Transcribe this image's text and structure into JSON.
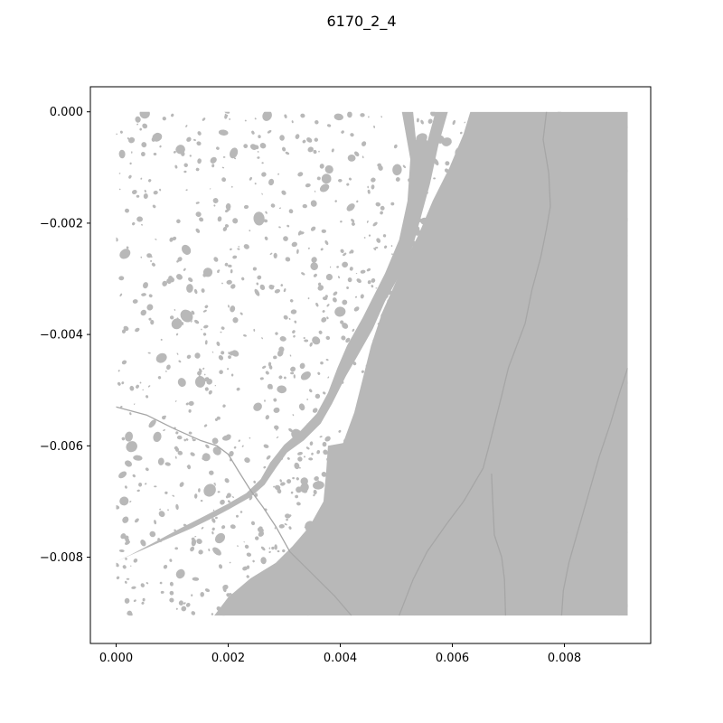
{
  "title": "6170_2_4",
  "colors": {
    "water": "#b8b8b8",
    "stream": "#a6a6a6",
    "background": "#ffffff",
    "frame": "#000000"
  },
  "chart_data": {
    "type": "map",
    "xlim": [
      -0.00046,
      0.00954
    ],
    "ylim": [
      -0.00955,
      0.00045
    ],
    "xticks": [
      {
        "value": 0.0,
        "label": "0.000"
      },
      {
        "value": 0.002,
        "label": "0.002"
      },
      {
        "value": 0.004,
        "label": "0.004"
      },
      {
        "value": 0.006,
        "label": "0.006"
      },
      {
        "value": 0.008,
        "label": "0.008"
      }
    ],
    "yticks": [
      {
        "value": 0.0,
        "label": "0.000"
      },
      {
        "value": -0.002,
        "label": "−0.002"
      },
      {
        "value": -0.004,
        "label": "−0.004"
      },
      {
        "value": -0.006,
        "label": "−0.006"
      },
      {
        "value": -0.008,
        "label": "−0.008"
      }
    ],
    "grid": false,
    "features": [
      {
        "name": "large water body (east)",
        "polygon": [
          [
            0.00632,
            0.0
          ],
          [
            0.00913,
            0.0
          ],
          [
            0.00913,
            -0.00905
          ],
          [
            0.00175,
            -0.00905
          ],
          [
            0.002,
            -0.00872
          ],
          [
            0.0024,
            -0.00838
          ],
          [
            0.00285,
            -0.0081
          ],
          [
            0.00315,
            -0.0078
          ],
          [
            0.00345,
            -0.00745
          ],
          [
            0.0037,
            -0.007
          ],
          [
            0.00375,
            -0.00645
          ],
          [
            0.00378,
            -0.006
          ],
          [
            0.00405,
            -0.00595
          ],
          [
            0.00425,
            -0.0054
          ],
          [
            0.0044,
            -0.0048
          ],
          [
            0.00455,
            -0.0042
          ],
          [
            0.00475,
            -0.0036
          ],
          [
            0.00495,
            -0.00315
          ],
          [
            0.00515,
            -0.0027
          ],
          [
            0.0054,
            -0.0022
          ],
          [
            0.00565,
            -0.0016
          ],
          [
            0.00595,
            -0.001
          ],
          [
            0.0062,
            -0.0004
          ]
        ]
      },
      {
        "name": "river channel",
        "polygon": [
          [
            0.0,
            -0.00808
          ],
          [
            0.0004,
            -0.0079
          ],
          [
            0.00085,
            -0.0077
          ],
          [
            0.00135,
            -0.00748
          ],
          [
            0.00175,
            -0.00728
          ],
          [
            0.00205,
            -0.00712
          ],
          [
            0.0024,
            -0.00692
          ],
          [
            0.00265,
            -0.0067
          ],
          [
            0.00285,
            -0.0064
          ],
          [
            0.00305,
            -0.00612
          ],
          [
            0.00335,
            -0.0059
          ],
          [
            0.00365,
            -0.0056
          ],
          [
            0.00385,
            -0.00525
          ],
          [
            0.0041,
            -0.00475
          ],
          [
            0.0043,
            -0.0044
          ],
          [
            0.00458,
            -0.0039
          ],
          [
            0.0048,
            -0.0034
          ],
          [
            0.00505,
            -0.00295
          ],
          [
            0.0053,
            -0.0024
          ],
          [
            0.00545,
            -0.00185
          ],
          [
            0.0056,
            -0.0013
          ],
          [
            0.00575,
            -0.0006
          ],
          [
            0.00592,
            0.0
          ],
          [
            0.0057,
            0.0
          ],
          [
            0.00555,
            -0.00055
          ],
          [
            0.00535,
            -0.0005
          ],
          [
            0.0053,
            0.0
          ],
          [
            0.0051,
            0.0
          ],
          [
            0.00525,
            -0.00085
          ],
          [
            0.0052,
            -0.0016
          ],
          [
            0.00505,
            -0.0023
          ],
          [
            0.0048,
            -0.0029
          ],
          [
            0.0046,
            -0.0033
          ],
          [
            0.0044,
            -0.0037
          ],
          [
            0.00412,
            -0.0042
          ],
          [
            0.00395,
            -0.0046
          ],
          [
            0.00378,
            -0.00505
          ],
          [
            0.00358,
            -0.00542
          ],
          [
            0.0033,
            -0.00572
          ],
          [
            0.003,
            -0.00598
          ],
          [
            0.00275,
            -0.0063
          ],
          [
            0.00258,
            -0.0066
          ],
          [
            0.00232,
            -0.00685
          ],
          [
            0.00198,
            -0.00705
          ],
          [
            0.0016,
            -0.00725
          ],
          [
            0.00115,
            -0.00748
          ],
          [
            0.00065,
            -0.00775
          ],
          [
            0.00025,
            -0.00796
          ]
        ]
      },
      {
        "name": "western stream",
        "polyline": [
          [
            0.0,
            -0.0053
          ],
          [
            0.00055,
            -0.00545
          ],
          [
            0.00105,
            -0.0057
          ],
          [
            0.0015,
            -0.0059
          ],
          [
            0.0018,
            -0.006
          ],
          [
            0.002,
            -0.00615
          ],
          [
            0.00218,
            -0.00645
          ],
          [
            0.0024,
            -0.0068
          ],
          [
            0.00262,
            -0.0071
          ],
          [
            0.00285,
            -0.00745
          ],
          [
            0.0031,
            -0.0079
          ],
          [
            0.0034,
            -0.0082
          ],
          [
            0.0039,
            -0.0087
          ],
          [
            0.0042,
            -0.00905
          ]
        ]
      },
      {
        "name": "stream A (east)",
        "polyline": [
          [
            0.00768,
            0.0
          ],
          [
            0.00762,
            -0.0005
          ],
          [
            0.00772,
            -0.0011
          ],
          [
            0.00775,
            -0.0017
          ],
          [
            0.00768,
            -0.0021
          ],
          [
            0.00758,
            -0.0026
          ],
          [
            0.00742,
            -0.0032
          ],
          [
            0.0073,
            -0.0038
          ],
          [
            0.00715,
            -0.0042
          ],
          [
            0.007,
            -0.0046
          ],
          [
            0.00688,
            -0.0051
          ],
          [
            0.00668,
            -0.0059
          ],
          [
            0.00655,
            -0.0064
          ],
          [
            0.0062,
            -0.007
          ],
          [
            0.0059,
            -0.0074
          ],
          [
            0.00555,
            -0.0079
          ],
          [
            0.0053,
            -0.0084
          ],
          [
            0.00505,
            -0.00905
          ]
        ]
      },
      {
        "name": "stream B (east)",
        "polyline": [
          [
            0.0067,
            -0.0065
          ],
          [
            0.00672,
            -0.007
          ],
          [
            0.00675,
            -0.0076
          ],
          [
            0.00688,
            -0.008
          ],
          [
            0.00693,
            -0.0084
          ],
          [
            0.00695,
            -0.00905
          ]
        ]
      },
      {
        "name": "stream C (east)",
        "polyline": [
          [
            0.00913,
            -0.0046
          ],
          [
            0.009,
            -0.005
          ],
          [
            0.00882,
            -0.0056
          ],
          [
            0.00862,
            -0.0062
          ],
          [
            0.00842,
            -0.0069
          ],
          [
            0.00822,
            -0.0076
          ],
          [
            0.00808,
            -0.0081
          ],
          [
            0.00798,
            -0.0086
          ],
          [
            0.00795,
            -0.00905
          ]
        ]
      }
    ],
    "lake_scatter": {
      "extent": [
        [
          0.0,
          -0.00905
        ],
        [
          0.00913,
          0.0
        ]
      ],
      "seed": 617024
    }
  }
}
